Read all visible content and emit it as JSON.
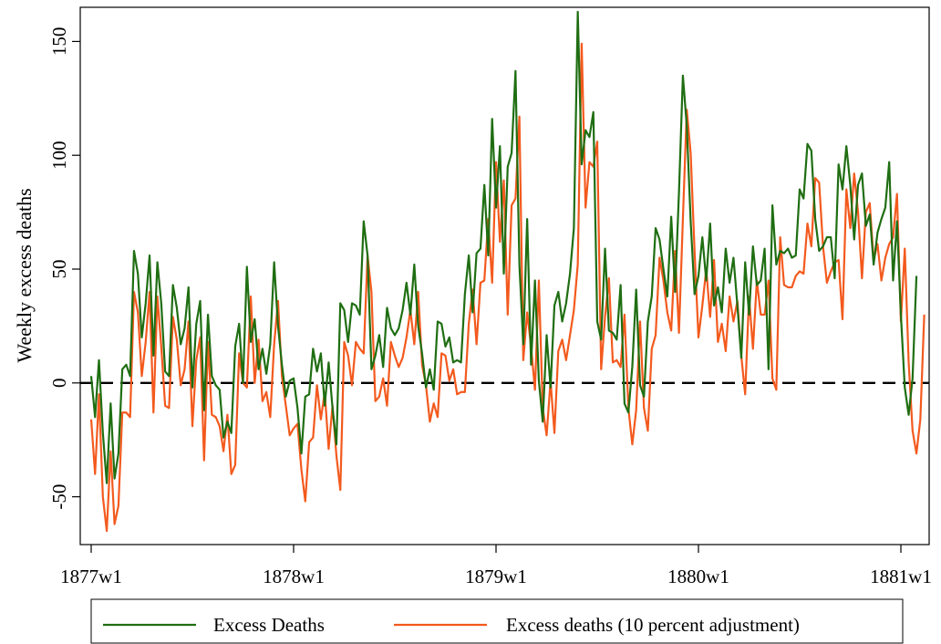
{
  "chart_data": {
    "type": "line",
    "ylabel": "Weekly excess deaths",
    "xlabel": "",
    "x_ticks": [
      "1877w1",
      "1878w1",
      "1879w1",
      "1880w1",
      "1881w1"
    ],
    "y_ticks": [
      -50,
      0,
      50,
      100,
      150
    ],
    "xlim": [
      0,
      208
    ],
    "ylim": [
      -71,
      165
    ],
    "reference_line": {
      "y": 0,
      "style": "dashed"
    },
    "grid": false,
    "legend_position": "bottom",
    "colors": {
      "Excess Deaths": "#1f6e12",
      "Excess deaths (10 percent adjustment)": "#f35a1e"
    },
    "series": [
      {
        "name": "Excess Deaths",
        "values": [
          3,
          -15,
          10,
          -22,
          -44,
          -9,
          -42,
          -31,
          6,
          8,
          3,
          58,
          48,
          20,
          35,
          56,
          12,
          53,
          35,
          5,
          3,
          43,
          33,
          17,
          24,
          42,
          -2,
          26,
          36,
          -12,
          30,
          3,
          -1,
          -3,
          -24,
          -17,
          -22,
          16,
          26,
          0,
          51,
          18,
          28,
          6,
          15,
          4,
          17,
          53,
          25,
          8,
          -6,
          1,
          2,
          -11,
          -31,
          -6,
          -5,
          15,
          5,
          13,
          -10,
          9,
          -11,
          -27,
          35,
          32,
          18,
          35,
          34,
          30,
          71,
          56,
          6,
          12,
          21,
          7,
          33,
          24,
          21,
          24,
          32,
          44,
          30,
          52,
          25,
          13,
          -2,
          6,
          -3,
          27,
          26,
          16,
          20,
          9,
          10,
          9,
          39,
          56,
          31,
          57,
          59,
          87,
          56,
          116,
          77,
          104,
          48,
          95,
          101,
          137,
          52,
          17,
          72,
          8,
          45,
          1,
          -17,
          21,
          -2,
          34,
          40,
          27,
          35,
          48,
          68,
          163,
          96,
          111,
          108,
          119,
          27,
          19,
          59,
          23,
          22,
          19,
          43,
          -9,
          -13,
          7,
          41,
          -1,
          -6,
          27,
          38,
          68,
          63,
          50,
          38,
          73,
          40,
          84,
          135,
          113,
          71,
          39,
          47,
          64,
          45,
          70,
          34,
          42,
          31,
          59,
          44,
          55,
          34,
          11,
          53,
          30,
          60,
          43,
          45,
          59,
          6,
          78,
          52,
          58,
          57,
          59,
          55,
          56,
          85,
          81,
          105,
          102,
          72,
          58,
          60,
          64,
          64,
          46,
          96,
          85,
          104,
          87,
          63,
          87,
          92,
          69,
          74,
          52,
          66,
          72,
          77,
          97,
          45,
          71,
          30,
          -2,
          -14,
          2,
          47
        ]
      },
      {
        "name": "Excess deaths (10 percent adjustment)",
        "values": [
          -16,
          -40,
          -5,
          -50,
          -65,
          -30,
          -62,
          -54,
          -13,
          -13,
          -15,
          40,
          31,
          3,
          18,
          40,
          -13,
          38,
          16,
          -10,
          -11,
          29,
          19,
          -1,
          6,
          27,
          -19,
          10,
          20,
          -34,
          18,
          -14,
          -15,
          -19,
          -30,
          -14,
          -40,
          -36,
          13,
          0,
          -2,
          38,
          0,
          19,
          -8,
          -4,
          -15,
          17,
          36,
          3,
          -10,
          -23,
          -20,
          -18,
          -38,
          -52,
          -26,
          -24,
          -1,
          -16,
          -4,
          -29,
          -10,
          -32,
          -47,
          18,
          12,
          -1,
          18,
          15,
          13,
          56,
          40,
          -8,
          -6,
          2,
          -10,
          18,
          12,
          7,
          11,
          20,
          32,
          17,
          40,
          8,
          -1,
          -17,
          -9,
          -15,
          13,
          12,
          1,
          6,
          -5,
          -4,
          -4,
          26,
          41,
          17,
          44,
          45,
          72,
          44,
          97,
          62,
          89,
          30,
          78,
          81,
          117,
          10,
          31,
          16,
          -3,
          45,
          -11,
          -23,
          1,
          -22,
          14,
          19,
          10,
          21,
          32,
          52,
          149,
          77,
          97,
          95,
          106,
          6,
          29,
          46,
          9,
          10,
          7,
          30,
          -11,
          -27,
          -12,
          27,
          -11,
          -21,
          15,
          21,
          55,
          45,
          31,
          23,
          58,
          22,
          72,
          120,
          101,
          58,
          20,
          34,
          50,
          29,
          54,
          18,
          26,
          14,
          38,
          27,
          36,
          12,
          -5,
          38,
          15,
          45,
          30,
          30,
          45,
          2,
          -3,
          64,
          43,
          42,
          42,
          47,
          49,
          48,
          70,
          60,
          90,
          88,
          60,
          44,
          49,
          53,
          54,
          28,
          85,
          68,
          92,
          75,
          46,
          75,
          79,
          54,
          61,
          45,
          55,
          61,
          64,
          83,
          27,
          59,
          9,
          -21,
          -31,
          -16,
          30
        ]
      }
    ]
  }
}
